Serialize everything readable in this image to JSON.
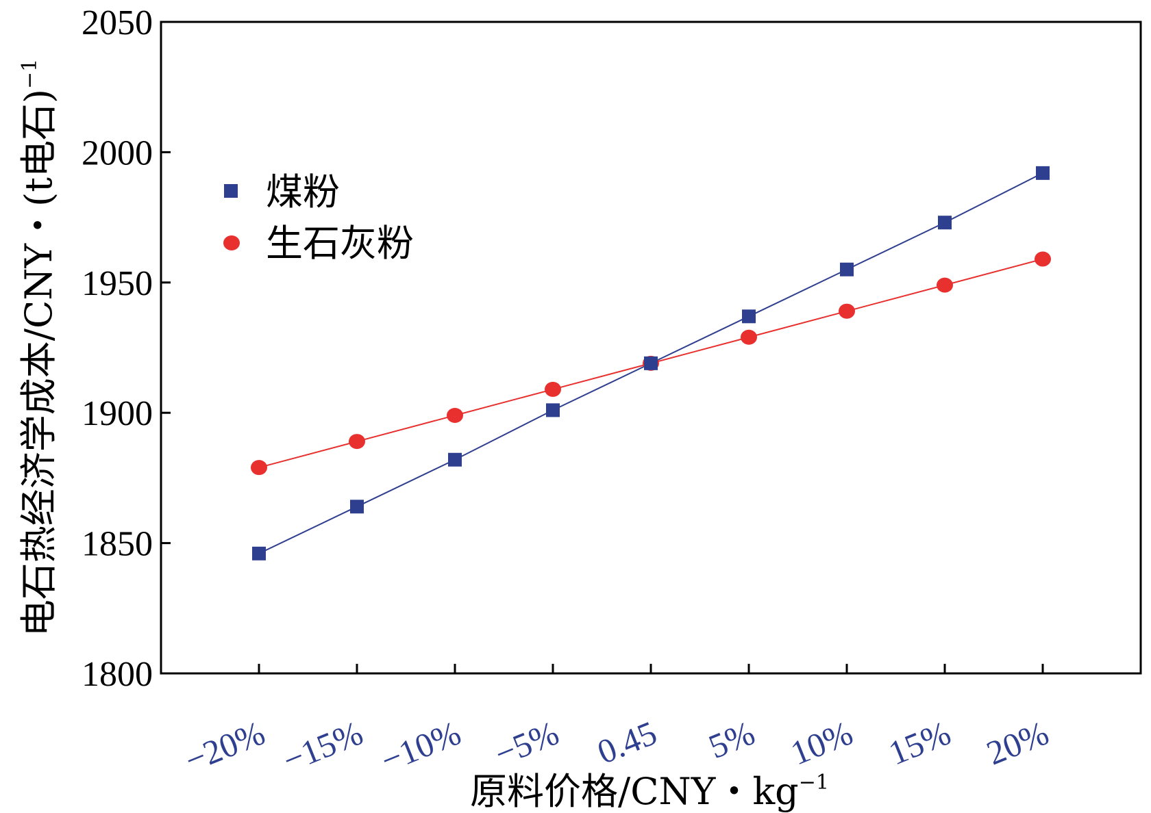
{
  "chart_data": {
    "type": "line",
    "title": "",
    "xlabel": "原料价格/CNY・kg",
    "xlabel_sup": "−1",
    "ylabel": "电石热经济学成本/CNY・(t电石)",
    "ylabel_sup": "−1",
    "categories": [
      "−20%",
      "−15%",
      "−10%",
      "−5%",
      "0.45",
      "5%",
      "10%",
      "15%",
      "20%"
    ],
    "y_ticks": [
      "1800",
      "1850",
      "1900",
      "1950",
      "2000",
      "2050"
    ],
    "ylim": [
      1800,
      2050
    ],
    "legend_position": "upper-left",
    "series": [
      {
        "name": "煤粉",
        "marker": "square",
        "color": "#2f3f8f",
        "values": [
          1846,
          1864,
          1882,
          1901,
          1919,
          1937,
          1955,
          1973,
          1992
        ]
      },
      {
        "name": "生石灰粉",
        "marker": "circle",
        "color": "#e8312f",
        "values": [
          1879,
          1889,
          1899,
          1909,
          1919,
          1929,
          1939,
          1949,
          1959
        ]
      }
    ]
  }
}
